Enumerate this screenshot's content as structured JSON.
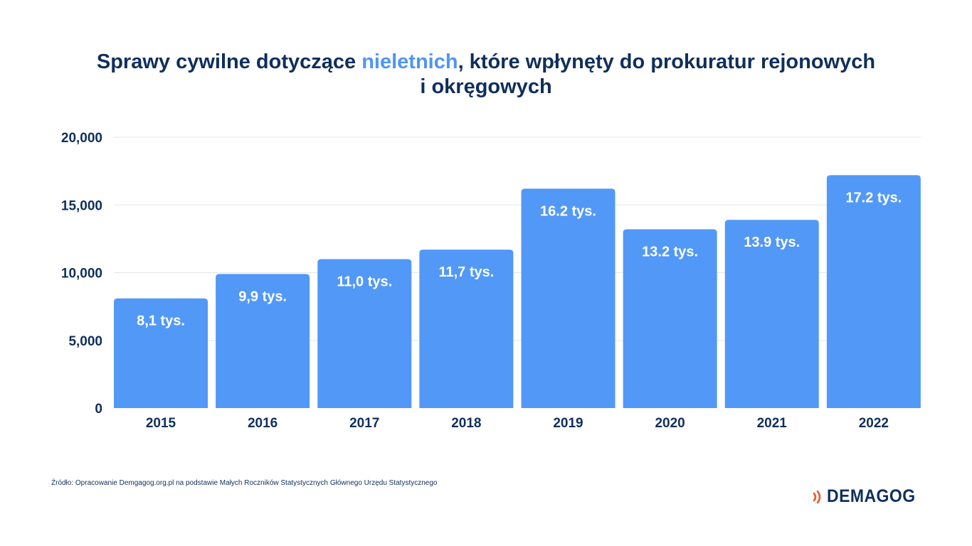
{
  "title": {
    "part1": "Sprawy cywilne dotyczące ",
    "highlight": "nieletnich",
    "part2": ", które wpłynęty do prokuratur rejonowych",
    "line2": "i okręgowych"
  },
  "chart_data": {
    "type": "bar",
    "categories": [
      "2015",
      "2016",
      "2017",
      "2018",
      "2019",
      "2020",
      "2021",
      "2022"
    ],
    "values": [
      8100,
      9900,
      11000,
      11700,
      16200,
      13200,
      13900,
      17200
    ],
    "data_labels": [
      "8,1 tys.",
      "9,9 tys.",
      "11,0 tys.",
      "11,7 tys.",
      "16.2 tys.",
      "13.2 tys.",
      "13.9 tys.",
      "17.2 tys."
    ],
    "y_ticks": [
      0,
      5000,
      10000,
      15000,
      20000
    ],
    "y_tick_labels": [
      "0",
      "5,000",
      "10,000",
      "15,000",
      "20,000"
    ],
    "ylim": [
      0,
      20000
    ],
    "grid": true,
    "colors": {
      "bar": "#5298f7",
      "text": "#0f2f5c",
      "highlight": "#4f95f4",
      "grid": "#e2e6ea"
    }
  },
  "source": "Źródło: Opracowanie Demgagog.org.pl na podstawie Małych Roczników Statystycznych Głównego Urzędu Statystycznego",
  "logo": {
    "text": "DEMAGOG",
    "icon": "sound-waves-icon",
    "icon_color": "#e8582a"
  }
}
